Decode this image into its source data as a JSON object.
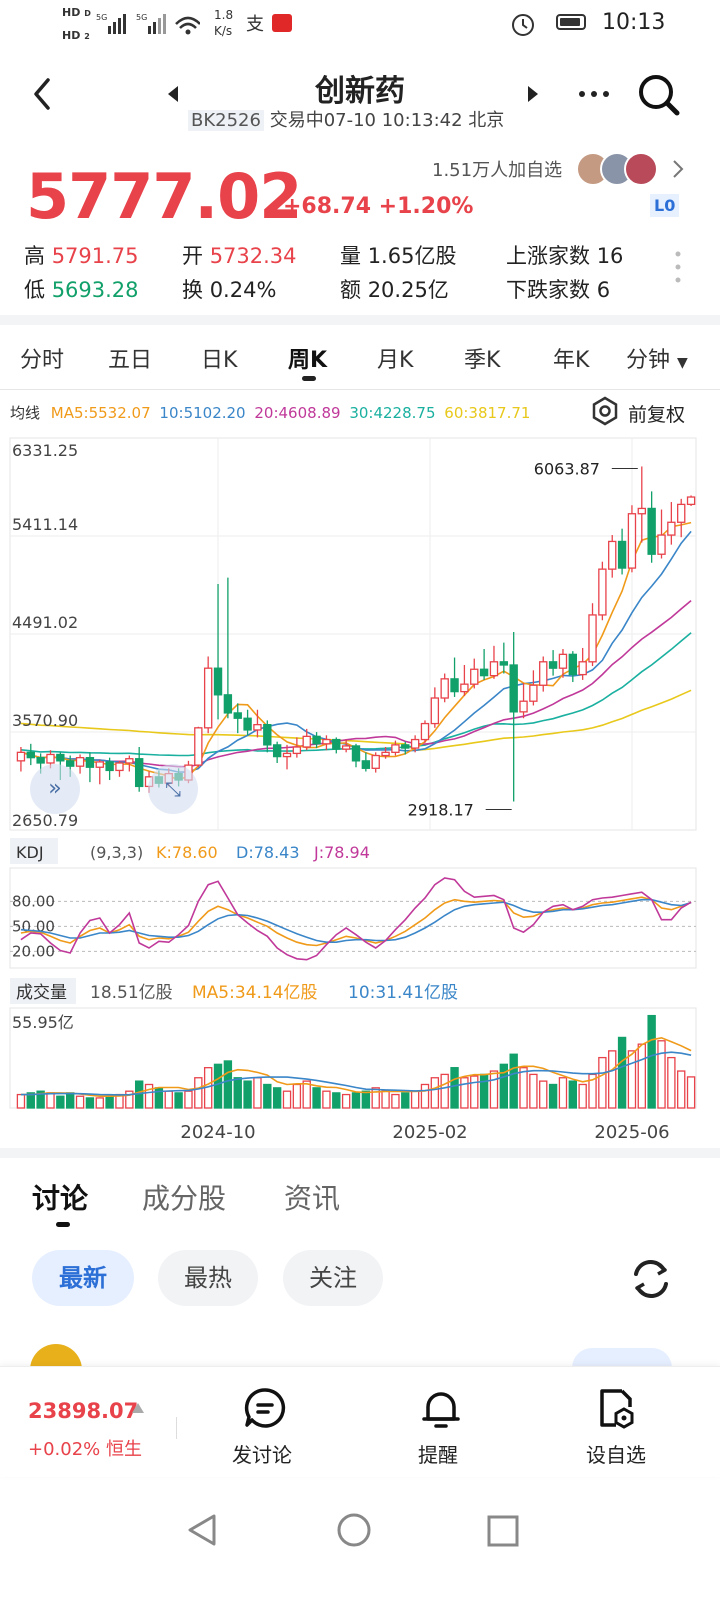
{
  "status": {
    "time": "10:13",
    "speed_top": "1.8",
    "speed_bottom": "K/s",
    "hd1": "HD",
    "hd2": "HD",
    "sig1": "5G",
    "sig2": "5G"
  },
  "header": {
    "title": "创新药",
    "code": "BK2526",
    "status_text": "交易中07-10 10:13:42 北京"
  },
  "quote": {
    "price": "5777.02",
    "change": "+68.74 +1.20%",
    "watchers": "1.51万人加自选",
    "level_badge": "L0"
  },
  "stats": {
    "high_label": "高",
    "high": "5791.75",
    "low_label": "低",
    "low": "5693.28",
    "open_label": "开",
    "open": "5732.34",
    "turnover_label": "换",
    "turnover": "0.24%",
    "volume_label": "量",
    "volume": "1.65亿股",
    "amount_label": "额",
    "amount": "20.25亿",
    "up_label": "上涨家数",
    "up": "16",
    "down_label": "下跌家数",
    "down": "6"
  },
  "ktabs": [
    "分时",
    "五日",
    "日K",
    "周K",
    "月K",
    "季K",
    "年K",
    "分钟"
  ],
  "active_ktab": "周K",
  "ma_legend": {
    "label": "均线",
    "ma5": "MA5:5532.07",
    "ma10": "10:5102.20",
    "ma20": "20:4608.89",
    "ma30": "30:4228.75",
    "ma60": "60:3817.71",
    "adjust": "前复权"
  },
  "colors": {
    "up": "#e8424a",
    "down": "#12a06a",
    "ma5": "#f09a1a",
    "ma10": "#3a86c8",
    "ma20": "#c0399a",
    "ma30": "#1ab0a0",
    "ma60": "#e8c81a",
    "accent": "#2c6fd6"
  },
  "chart_data": [
    {
      "type": "candlestick",
      "title": "周K",
      "y_tick_labels": [
        "6331.25",
        "5411.14",
        "4491.02",
        "3570.90",
        "2650.79"
      ],
      "ylim": [
        2650.79,
        6331.25
      ],
      "x_tick_labels": [
        "2024-10",
        "2025-02",
        "2025-06"
      ],
      "high_marker": "6063.87",
      "low_marker": "2918.17",
      "candles": [
        {
          "o": 3300,
          "c": 3380,
          "h": 3430,
          "l": 3200
        },
        {
          "o": 3380,
          "c": 3330,
          "h": 3460,
          "l": 3260
        },
        {
          "o": 3330,
          "c": 3280,
          "h": 3370,
          "l": 3180
        },
        {
          "o": 3280,
          "c": 3360,
          "h": 3400,
          "l": 3230
        },
        {
          "o": 3360,
          "c": 3300,
          "h": 3380,
          "l": 3120
        },
        {
          "o": 3300,
          "c": 3250,
          "h": 3350,
          "l": 3150
        },
        {
          "o": 3250,
          "c": 3330,
          "h": 3360,
          "l": 3180
        },
        {
          "o": 3330,
          "c": 3240,
          "h": 3380,
          "l": 3100
        },
        {
          "o": 3240,
          "c": 3290,
          "h": 3310,
          "l": 3080
        },
        {
          "o": 3290,
          "c": 3210,
          "h": 3330,
          "l": 3120
        },
        {
          "o": 3210,
          "c": 3280,
          "h": 3300,
          "l": 3150
        },
        {
          "o": 3280,
          "c": 3320,
          "h": 3350,
          "l": 3200
        },
        {
          "o": 3320,
          "c": 3060,
          "h": 3430,
          "l": 3010
        },
        {
          "o": 3060,
          "c": 3150,
          "h": 3200,
          "l": 3000
        },
        {
          "o": 3150,
          "c": 3090,
          "h": 3210,
          "l": 3050
        },
        {
          "o": 3090,
          "c": 3180,
          "h": 3230,
          "l": 3060
        },
        {
          "o": 3180,
          "c": 3120,
          "h": 3230,
          "l": 3060
        },
        {
          "o": 3120,
          "c": 3260,
          "h": 3300,
          "l": 3090
        },
        {
          "o": 3260,
          "c": 3610,
          "h": 3620,
          "l": 3240
        },
        {
          "o": 3610,
          "c": 4170,
          "h": 4280,
          "l": 3560
        },
        {
          "o": 4170,
          "c": 3920,
          "h": 4960,
          "l": 3690
        },
        {
          "o": 3920,
          "c": 3750,
          "h": 5020,
          "l": 3700
        },
        {
          "o": 3750,
          "c": 3700,
          "h": 3840,
          "l": 3560
        },
        {
          "o": 3700,
          "c": 3590,
          "h": 3780,
          "l": 3540
        },
        {
          "o": 3590,
          "c": 3640,
          "h": 3780,
          "l": 3520
        },
        {
          "o": 3640,
          "c": 3450,
          "h": 3680,
          "l": 3380
        },
        {
          "o": 3450,
          "c": 3340,
          "h": 3480,
          "l": 3280
        },
        {
          "o": 3340,
          "c": 3370,
          "h": 3450,
          "l": 3220
        },
        {
          "o": 3370,
          "c": 3430,
          "h": 3520,
          "l": 3330
        },
        {
          "o": 3430,
          "c": 3530,
          "h": 3600,
          "l": 3400
        },
        {
          "o": 3530,
          "c": 3460,
          "h": 3570,
          "l": 3420
        },
        {
          "o": 3460,
          "c": 3500,
          "h": 3540,
          "l": 3400
        },
        {
          "o": 3500,
          "c": 3410,
          "h": 3520,
          "l": 3370
        },
        {
          "o": 3410,
          "c": 3440,
          "h": 3500,
          "l": 3380
        },
        {
          "o": 3440,
          "c": 3300,
          "h": 3460,
          "l": 3240
        },
        {
          "o": 3300,
          "c": 3230,
          "h": 3380,
          "l": 3200
        },
        {
          "o": 3230,
          "c": 3350,
          "h": 3380,
          "l": 3190
        },
        {
          "o": 3350,
          "c": 3380,
          "h": 3430,
          "l": 3320
        },
        {
          "o": 3380,
          "c": 3450,
          "h": 3490,
          "l": 3350
        },
        {
          "o": 3450,
          "c": 3420,
          "h": 3480,
          "l": 3360
        },
        {
          "o": 3420,
          "c": 3500,
          "h": 3540,
          "l": 3380
        },
        {
          "o": 3500,
          "c": 3650,
          "h": 3680,
          "l": 3470
        },
        {
          "o": 3650,
          "c": 3890,
          "h": 3990,
          "l": 3610
        },
        {
          "o": 3890,
          "c": 4070,
          "h": 4120,
          "l": 3850
        },
        {
          "o": 4070,
          "c": 3950,
          "h": 4270,
          "l": 3900
        },
        {
          "o": 3950,
          "c": 4020,
          "h": 4200,
          "l": 3910
        },
        {
          "o": 4020,
          "c": 4160,
          "h": 4260,
          "l": 3980
        },
        {
          "o": 4160,
          "c": 4100,
          "h": 4350,
          "l": 4060
        },
        {
          "o": 4100,
          "c": 4230,
          "h": 4380,
          "l": 4070
        },
        {
          "o": 4230,
          "c": 4200,
          "h": 4410,
          "l": 4120
        },
        {
          "o": 4200,
          "c": 3760,
          "h": 4510,
          "l": 2918
        },
        {
          "o": 3760,
          "c": 3860,
          "h": 4030,
          "l": 3700
        },
        {
          "o": 3860,
          "c": 4010,
          "h": 4150,
          "l": 3820
        },
        {
          "o": 4010,
          "c": 4230,
          "h": 4280,
          "l": 3950
        },
        {
          "o": 4230,
          "c": 4170,
          "h": 4340,
          "l": 4100
        },
        {
          "o": 4170,
          "c": 4300,
          "h": 4350,
          "l": 4080
        },
        {
          "o": 4300,
          "c": 4110,
          "h": 4330,
          "l": 4040
        },
        {
          "o": 4110,
          "c": 4230,
          "h": 4360,
          "l": 4060
        },
        {
          "o": 4230,
          "c": 4670,
          "h": 4780,
          "l": 4190
        },
        {
          "o": 4670,
          "c": 5100,
          "h": 5170,
          "l": 4620
        },
        {
          "o": 5100,
          "c": 5360,
          "h": 5420,
          "l": 5020
        },
        {
          "o": 5360,
          "c": 5110,
          "h": 5480,
          "l": 5050
        },
        {
          "o": 5110,
          "c": 5620,
          "h": 5700,
          "l": 5070
        },
        {
          "o": 5620,
          "c": 5670,
          "h": 6064,
          "l": 5350
        },
        {
          "o": 5670,
          "c": 5240,
          "h": 5830,
          "l": 5160
        },
        {
          "o": 5240,
          "c": 5420,
          "h": 5660,
          "l": 5200
        },
        {
          "o": 5420,
          "c": 5540,
          "h": 5730,
          "l": 5330
        },
        {
          "o": 5540,
          "c": 5708,
          "h": 5760,
          "l": 5400
        },
        {
          "o": 5708,
          "c": 5777,
          "h": 5792,
          "l": 5693
        }
      ]
    },
    {
      "type": "line",
      "title": "KDJ",
      "params": "(9,3,3)",
      "K_label": "K:78.60",
      "D_label": "D:78.43",
      "J_label": "J:78.94",
      "y_tick_labels": [
        "80.00",
        "50.00",
        "20.00"
      ],
      "ylim": [
        0,
        120
      ],
      "series": [
        {
          "name": "K",
          "values": [
            42,
            44,
            43,
            38,
            33,
            30,
            38,
            45,
            48,
            42,
            46,
            52,
            38,
            34,
            36,
            35,
            38,
            43,
            56,
            68,
            74,
            70,
            64,
            60,
            55,
            50,
            42,
            36,
            31,
            28,
            27,
            30,
            34,
            38,
            36,
            33,
            30,
            33,
            38,
            44,
            52,
            60,
            70,
            78,
            82,
            80,
            79,
            80,
            81,
            80,
            66,
            61,
            62,
            67,
            70,
            72,
            70,
            72,
            76,
            78,
            79,
            81,
            83,
            85,
            82,
            72,
            70,
            74,
            78.6
          ]
        },
        {
          "name": "D",
          "values": [
            46,
            45,
            44,
            42,
            39,
            36,
            36,
            39,
            42,
            42,
            43,
            45,
            42,
            39,
            38,
            37,
            37,
            39,
            44,
            52,
            59,
            63,
            64,
            63,
            60,
            56,
            51,
            46,
            41,
            37,
            33,
            31,
            31,
            33,
            34,
            34,
            33,
            33,
            34,
            37,
            42,
            48,
            55,
            63,
            70,
            74,
            76,
            77,
            78,
            79,
            75,
            70,
            67,
            67,
            68,
            70,
            70,
            71,
            73,
            75,
            76,
            78,
            80,
            82,
            82,
            79,
            76,
            75,
            78.43
          ]
        },
        {
          "name": "J",
          "values": [
            34,
            42,
            41,
            30,
            21,
            18,
            42,
            57,
            60,
            42,
            52,
            66,
            30,
            24,
            32,
            31,
            40,
            51,
            80,
            100,
            104,
            84,
            64,
            54,
            45,
            38,
            24,
            16,
            11,
            10,
            15,
            28,
            40,
            48,
            40,
            31,
            24,
            33,
            46,
            58,
            72,
            84,
            100,
            108,
            106,
            92,
            85,
            86,
            87,
            82,
            48,
            43,
            52,
            67,
            74,
            76,
            70,
            74,
            82,
            84,
            85,
            87,
            89,
            91,
            82,
            58,
            58,
            72,
            78.94
          ]
        }
      ]
    },
    {
      "type": "bar",
      "title": "成交量",
      "current": "18.51亿股",
      "ma5_label": "MA5:34.14亿股",
      "ma10_label": "10:31.41亿股",
      "y_max_label": "55.95亿",
      "ylim": [
        0,
        55.95
      ],
      "values": [
        8,
        9,
        10,
        9,
        7,
        9,
        7,
        6,
        6,
        7,
        8,
        10,
        16,
        14,
        12,
        10,
        9,
        10,
        18,
        24,
        26,
        28,
        18,
        16,
        18,
        14,
        12,
        10,
        14,
        16,
        12,
        10,
        9,
        8,
        9,
        10,
        12,
        10,
        8,
        9,
        10,
        14,
        18,
        20,
        24,
        18,
        19,
        20,
        22,
        26,
        32,
        24,
        20,
        16,
        14,
        18,
        16,
        14,
        20,
        30,
        34,
        42,
        34,
        38,
        55,
        40,
        30,
        22,
        18.51
      ],
      "ma5": [
        8,
        8,
        8.5,
        9,
        9,
        8.8,
        8.4,
        7.6,
        7,
        7,
        7.2,
        7.6,
        9.4,
        11,
        12.2,
        12.2,
        12.2,
        11,
        11.8,
        14.2,
        17.4,
        21.2,
        22.8,
        22.4,
        21.2,
        19.6,
        15.6,
        14,
        14.4,
        14.4,
        13.2,
        12.4,
        12.2,
        11,
        9.6,
        9.2,
        9.6,
        9.8,
        9.8,
        9.8,
        9.8,
        10.2,
        11.8,
        14.2,
        17.2,
        18.8,
        19.8,
        19.8,
        20.6,
        21,
        23.8,
        24.8,
        24.8,
        23.6,
        21.2,
        19.2,
        17.2,
        15.6,
        16.8,
        19.6,
        22.8,
        28,
        32,
        37.6,
        40.6,
        41.8,
        39.4,
        37,
        34.14
      ],
      "ma10": [
        8,
        8,
        8.3,
        8.5,
        8.6,
        8.6,
        8.5,
        8.3,
        8,
        7.9,
        7.8,
        7.9,
        8.6,
        9.2,
        9.8,
        10.1,
        10.3,
        10.5,
        11.3,
        12.6,
        14.3,
        16.2,
        17.2,
        17.8,
        18.2,
        18.4,
        18.4,
        18.4,
        17.8,
        17.2,
        16.4,
        15.4,
        14.4,
        13.4,
        12.2,
        11.2,
        11,
        10.8,
        10.6,
        10.4,
        10.2,
        10.4,
        11,
        12,
        13.2,
        14.2,
        15.2,
        15.8,
        16.8,
        18.6,
        20.4,
        21.6,
        22.2,
        22.2,
        22,
        21.4,
        20.8,
        20.4,
        20.4,
        20.8,
        22.2,
        24.6,
        26.6,
        28.8,
        31.2,
        32.6,
        33.2,
        32.6,
        31.41
      ]
    }
  ],
  "bottom_tabs": {
    "discuss": "讨论",
    "components": "成分股",
    "news": "资讯"
  },
  "filters": {
    "latest": "最新",
    "hot": "最热",
    "follow": "关注"
  },
  "footer": {
    "index_value": "23898.07",
    "index_change": "+0.02%",
    "index_name": "恒生",
    "post": "发讨论",
    "alert": "提醒",
    "add_watch": "设自选"
  }
}
